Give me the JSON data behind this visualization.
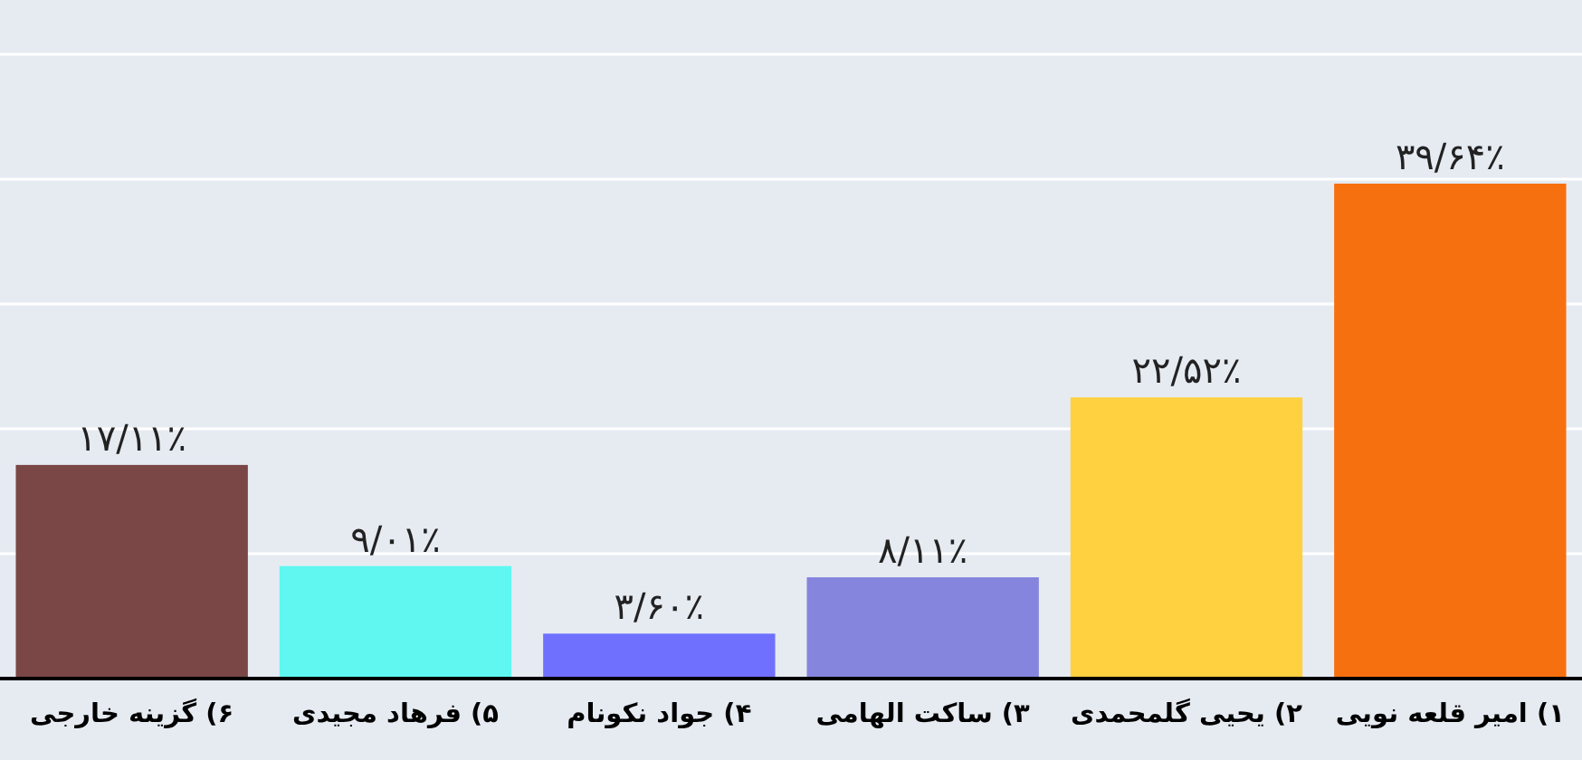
{
  "chart_data": {
    "type": "bar",
    "categories": [
      "۶) گزینه خارجی",
      "۵) فرهاد مجیدی",
      "۴) جواد نکونام",
      "۳) ساکت الهامی",
      "۲) یحیی گلمحمدی",
      "۱) امیر قلعه نویی"
    ],
    "values": [
      17.11,
      9.01,
      3.6,
      8.11,
      22.52,
      39.64
    ],
    "value_labels": [
      "۱۷/۱۱٪",
      "۹/۰۱٪",
      "۳/۶۰٪",
      "۸/۱۱٪",
      "۲۲/۵۲٪",
      "۳۹/۶۴٪"
    ],
    "colors": [
      "#7a4646",
      "#5ff7f0",
      "#7070ff",
      "#8585de",
      "#ffd040",
      "#f77010"
    ],
    "ylim": [
      0,
      50
    ],
    "yticks": [
      {
        "value": 0,
        "label": null
      },
      {
        "value": 10,
        "label": null
      },
      {
        "value": 20,
        "label": null
      },
      {
        "value": 30,
        "label": null
      },
      {
        "value": 40,
        "label": null
      },
      {
        "value": 50,
        "label": null
      }
    ],
    "grid": "y"
  }
}
